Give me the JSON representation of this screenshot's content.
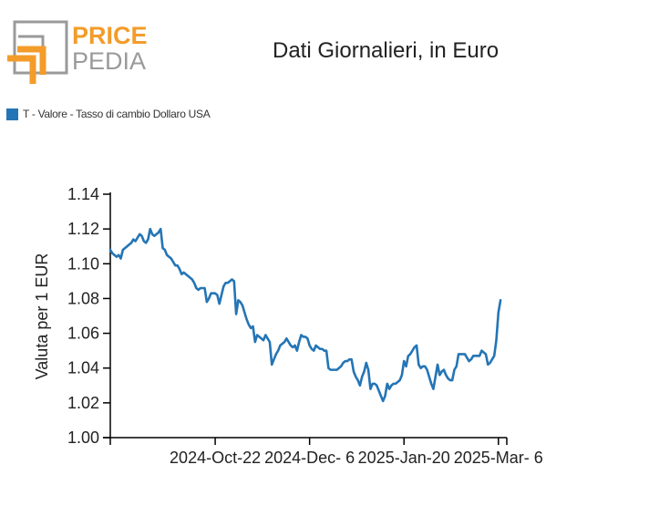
{
  "header": {
    "logo_text_top": "PRICE",
    "logo_text_bottom": "PEDIA",
    "title": "Dati Giornalieri, in Euro"
  },
  "colors": {
    "brand_orange": "#f39c2a",
    "brand_gray": "#9a9a9a",
    "series": "#2475b5"
  },
  "chart_data": {
    "type": "line",
    "title": "Dati Giornalieri, in Euro",
    "xlabel": "",
    "ylabel": "Valuta per 1 EUR",
    "x_range": [
      "2024-09-02",
      "2025-03-10"
    ],
    "x_ticks": [
      "2024-Oct-22",
      "2024-Dec- 6",
      "2025-Jan-20",
      "2025-Mar- 6"
    ],
    "x_tick_dates": [
      "2024-10-22",
      "2024-12-06",
      "2025-01-20",
      "2025-03-06"
    ],
    "y_ticks": [
      "1.00",
      "1.02",
      "1.04",
      "1.06",
      "1.08",
      "1.10",
      "1.12",
      "1.14"
    ],
    "ylim": [
      1.0,
      1.14
    ],
    "grid": false,
    "legend_position": "top-left",
    "series": [
      {
        "name": "T - Valore - Tasso di cambio Dollaro USA",
        "points": [
          [
            "2024-09-02",
            1.108
          ],
          [
            "2024-09-03",
            1.106
          ],
          [
            "2024-09-04",
            1.105
          ],
          [
            "2024-09-05",
            1.104
          ],
          [
            "2024-09-06",
            1.105
          ],
          [
            "2024-09-07",
            1.103
          ],
          [
            "2024-09-08",
            1.108
          ],
          [
            "2024-09-09",
            1.109
          ],
          [
            "2024-09-10",
            1.11
          ],
          [
            "2024-09-11",
            1.111
          ],
          [
            "2024-09-12",
            1.112
          ],
          [
            "2024-09-13",
            1.114
          ],
          [
            "2024-09-14",
            1.113
          ],
          [
            "2024-09-15",
            1.115
          ],
          [
            "2024-09-16",
            1.117
          ],
          [
            "2024-09-17",
            1.116
          ],
          [
            "2024-09-18",
            1.113
          ],
          [
            "2024-09-19",
            1.112
          ],
          [
            "2024-09-20",
            1.114
          ],
          [
            "2024-09-21",
            1.12
          ],
          [
            "2024-09-22",
            1.117
          ],
          [
            "2024-09-23",
            1.116
          ],
          [
            "2024-09-24",
            1.117
          ],
          [
            "2024-09-25",
            1.118
          ],
          [
            "2024-09-26",
            1.12
          ],
          [
            "2024-09-27",
            1.109
          ],
          [
            "2024-09-28",
            1.108
          ],
          [
            "2024-09-29",
            1.105
          ],
          [
            "2024-09-30",
            1.104
          ],
          [
            "2024-10-01",
            1.103
          ],
          [
            "2024-10-02",
            1.101
          ],
          [
            "2024-10-03",
            1.099
          ],
          [
            "2024-10-04",
            1.099
          ],
          [
            "2024-10-05",
            1.097
          ],
          [
            "2024-10-06",
            1.094
          ],
          [
            "2024-10-07",
            1.095
          ],
          [
            "2024-10-08",
            1.094
          ],
          [
            "2024-10-09",
            1.093
          ],
          [
            "2024-10-10",
            1.092
          ],
          [
            "2024-10-11",
            1.091
          ],
          [
            "2024-10-12",
            1.089
          ],
          [
            "2024-10-13",
            1.086
          ],
          [
            "2024-10-14",
            1.085
          ],
          [
            "2024-10-15",
            1.086
          ],
          [
            "2024-10-16",
            1.086
          ],
          [
            "2024-10-17",
            1.086
          ],
          [
            "2024-10-18",
            1.078
          ],
          [
            "2024-10-19",
            1.08
          ],
          [
            "2024-10-20",
            1.083
          ],
          [
            "2024-10-21",
            1.083
          ],
          [
            "2024-10-22",
            1.083
          ],
          [
            "2024-10-23",
            1.082
          ],
          [
            "2024-10-24",
            1.077
          ],
          [
            "2024-10-25",
            1.082
          ],
          [
            "2024-10-26",
            1.087
          ],
          [
            "2024-10-27",
            1.089
          ],
          [
            "2024-10-28",
            1.089
          ],
          [
            "2024-10-29",
            1.09
          ],
          [
            "2024-10-30",
            1.091
          ],
          [
            "2024-10-31",
            1.09
          ],
          [
            "2024-11-01",
            1.071
          ],
          [
            "2024-11-02",
            1.079
          ],
          [
            "2024-11-03",
            1.078
          ],
          [
            "2024-11-04",
            1.076
          ],
          [
            "2024-11-05",
            1.072
          ],
          [
            "2024-11-06",
            1.068
          ],
          [
            "2024-11-07",
            1.065
          ],
          [
            "2024-11-08",
            1.063
          ],
          [
            "2024-11-09",
            1.064
          ],
          [
            "2024-11-10",
            1.055
          ],
          [
            "2024-11-11",
            1.059
          ],
          [
            "2024-11-12",
            1.058
          ],
          [
            "2024-11-13",
            1.057
          ],
          [
            "2024-11-14",
            1.056
          ],
          [
            "2024-11-15",
            1.059
          ],
          [
            "2024-11-16",
            1.057
          ],
          [
            "2024-11-17",
            1.055
          ],
          [
            "2024-11-18",
            1.042
          ],
          [
            "2024-11-19",
            1.045
          ],
          [
            "2024-11-20",
            1.048
          ],
          [
            "2024-11-21",
            1.05
          ],
          [
            "2024-11-22",
            1.053
          ],
          [
            "2024-11-23",
            1.054
          ],
          [
            "2024-11-24",
            1.055
          ],
          [
            "2024-11-25",
            1.057
          ],
          [
            "2024-11-26",
            1.055
          ],
          [
            "2024-11-27",
            1.053
          ],
          [
            "2024-11-28",
            1.052
          ],
          [
            "2024-11-29",
            1.053
          ],
          [
            "2024-11-30",
            1.05
          ],
          [
            "2024-12-01",
            1.055
          ],
          [
            "2024-12-02",
            1.059
          ],
          [
            "2024-12-03",
            1.058
          ],
          [
            "2024-12-04",
            1.058
          ],
          [
            "2024-12-05",
            1.057
          ],
          [
            "2024-12-06",
            1.053
          ],
          [
            "2024-12-07",
            1.051
          ],
          [
            "2024-12-08",
            1.05
          ],
          [
            "2024-12-09",
            1.053
          ],
          [
            "2024-12-10",
            1.052
          ],
          [
            "2024-12-11",
            1.051
          ],
          [
            "2024-12-12",
            1.051
          ],
          [
            "2024-12-13",
            1.05
          ],
          [
            "2024-12-14",
            1.05
          ],
          [
            "2024-12-15",
            1.04
          ],
          [
            "2024-12-16",
            1.039
          ],
          [
            "2024-12-17",
            1.039
          ],
          [
            "2024-12-18",
            1.039
          ],
          [
            "2024-12-19",
            1.039
          ],
          [
            "2024-12-20",
            1.04
          ],
          [
            "2024-12-21",
            1.041
          ],
          [
            "2024-12-22",
            1.043
          ],
          [
            "2024-12-23",
            1.044
          ],
          [
            "2024-12-24",
            1.044
          ],
          [
            "2024-12-25",
            1.045
          ],
          [
            "2024-12-26",
            1.045
          ],
          [
            "2024-12-27",
            1.038
          ],
          [
            "2024-12-28",
            1.035
          ],
          [
            "2024-12-29",
            1.033
          ],
          [
            "2024-12-30",
            1.03
          ],
          [
            "2024-12-31",
            1.035
          ],
          [
            "2025-01-01",
            1.038
          ],
          [
            "2025-01-02",
            1.043
          ],
          [
            "2025-01-03",
            1.039
          ],
          [
            "2025-01-04",
            1.028
          ],
          [
            "2025-01-05",
            1.031
          ],
          [
            "2025-01-06",
            1.031
          ],
          [
            "2025-01-07",
            1.03
          ],
          [
            "2025-01-08",
            1.027
          ],
          [
            "2025-01-09",
            1.024
          ],
          [
            "2025-01-10",
            1.021
          ],
          [
            "2025-01-11",
            1.024
          ],
          [
            "2025-01-12",
            1.031
          ],
          [
            "2025-01-13",
            1.028
          ],
          [
            "2025-01-14",
            1.03
          ],
          [
            "2025-01-15",
            1.031
          ],
          [
            "2025-01-16",
            1.031
          ],
          [
            "2025-01-17",
            1.032
          ],
          [
            "2025-01-18",
            1.033
          ],
          [
            "2025-01-19",
            1.036
          ],
          [
            "2025-01-20",
            1.044
          ],
          [
            "2025-01-21",
            1.041
          ],
          [
            "2025-01-22",
            1.047
          ],
          [
            "2025-01-23",
            1.048
          ],
          [
            "2025-01-24",
            1.05
          ],
          [
            "2025-01-25",
            1.052
          ],
          [
            "2025-01-26",
            1.053
          ],
          [
            "2025-01-27",
            1.042
          ],
          [
            "2025-01-28",
            1.04
          ],
          [
            "2025-01-29",
            1.041
          ],
          [
            "2025-01-30",
            1.041
          ],
          [
            "2025-01-31",
            1.039
          ],
          [
            "2025-02-01",
            1.035
          ],
          [
            "2025-02-02",
            1.031
          ],
          [
            "2025-02-03",
            1.028
          ],
          [
            "2025-02-04",
            1.035
          ],
          [
            "2025-02-05",
            1.042
          ],
          [
            "2025-02-06",
            1.036
          ],
          [
            "2025-02-07",
            1.038
          ],
          [
            "2025-02-08",
            1.039
          ],
          [
            "2025-02-09",
            1.036
          ],
          [
            "2025-02-10",
            1.034
          ],
          [
            "2025-02-11",
            1.033
          ],
          [
            "2025-02-12",
            1.033
          ],
          [
            "2025-02-13",
            1.039
          ],
          [
            "2025-02-14",
            1.041
          ],
          [
            "2025-02-15",
            1.048
          ],
          [
            "2025-02-16",
            1.048
          ],
          [
            "2025-02-17",
            1.048
          ],
          [
            "2025-02-18",
            1.048
          ],
          [
            "2025-02-19",
            1.046
          ],
          [
            "2025-02-20",
            1.044
          ],
          [
            "2025-02-21",
            1.045
          ],
          [
            "2025-02-22",
            1.047
          ],
          [
            "2025-02-23",
            1.047
          ],
          [
            "2025-02-24",
            1.047
          ],
          [
            "2025-02-25",
            1.047
          ],
          [
            "2025-02-26",
            1.05
          ],
          [
            "2025-02-27",
            1.049
          ],
          [
            "2025-02-28",
            1.048
          ],
          [
            "2025-03-01",
            1.042
          ],
          [
            "2025-03-02",
            1.043
          ],
          [
            "2025-03-03",
            1.045
          ],
          [
            "2025-03-04",
            1.047
          ],
          [
            "2025-03-05",
            1.056
          ],
          [
            "2025-03-06",
            1.072
          ],
          [
            "2025-03-07",
            1.079
          ]
        ]
      }
    ]
  }
}
